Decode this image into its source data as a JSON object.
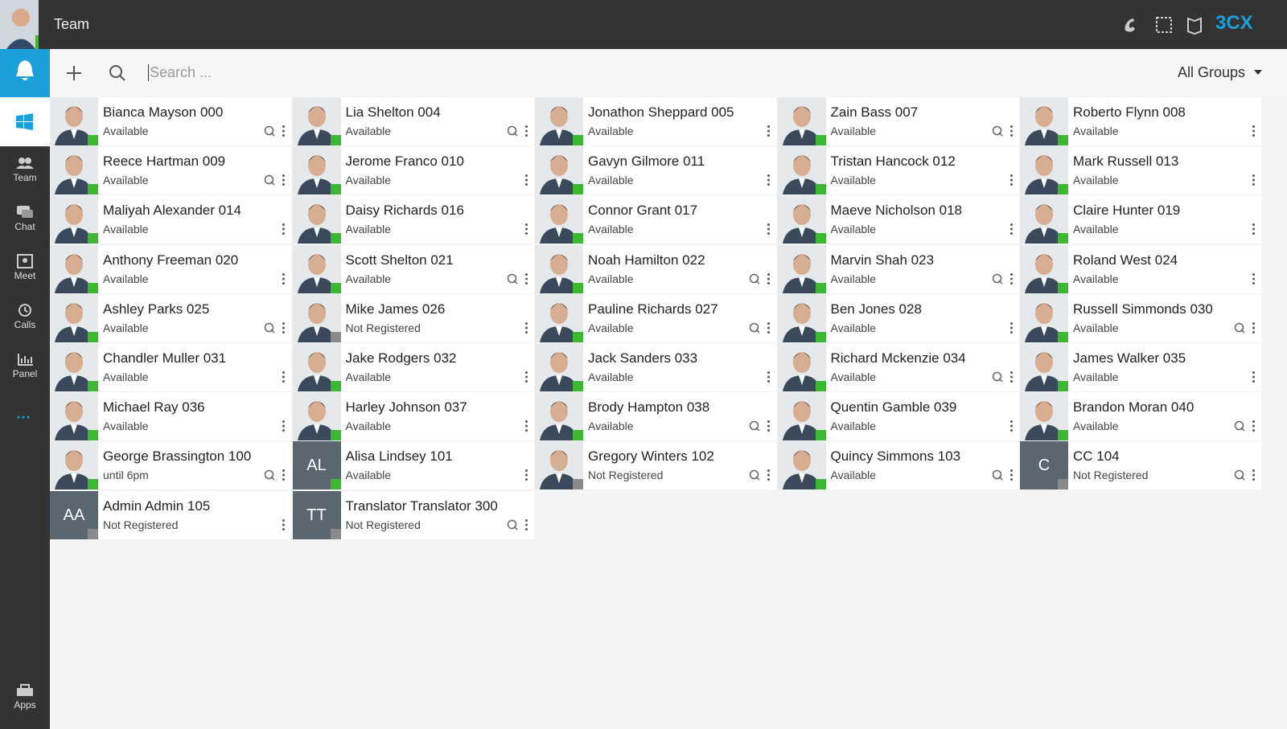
{
  "header": {
    "title": "Team",
    "brand": "3CX"
  },
  "toolbar": {
    "search_placeholder": "Search ...",
    "groups": "All Groups"
  },
  "sidebar": {
    "items": [
      "Team",
      "Chat",
      "Meet",
      "Calls",
      "Panel"
    ],
    "apps": "Apps"
  },
  "contacts": [
    {
      "name": "Bianca Mayson 000",
      "status": "Available",
      "dot": "#3cb731",
      "q": true
    },
    {
      "name": "Lia Shelton 004",
      "status": "Available",
      "dot": "#3cb731",
      "q": true
    },
    {
      "name": "Jonathon Sheppard 005",
      "status": "Available",
      "dot": "#3cb731",
      "q": false
    },
    {
      "name": "Zain Bass 007",
      "status": "Available",
      "dot": "#3cb731",
      "q": true
    },
    {
      "name": "Roberto Flynn 008",
      "status": "Available",
      "dot": "#3cb731",
      "q": false
    },
    {
      "name": "Reece Hartman 009",
      "status": "Available",
      "dot": "#3cb731",
      "q": true
    },
    {
      "name": "Jerome Franco 010",
      "status": "Available",
      "dot": "#3cb731",
      "q": false
    },
    {
      "name": "Gavyn Gilmore 011",
      "status": "Available",
      "dot": "#3cb731",
      "q": false
    },
    {
      "name": "Tristan Hancock 012",
      "status": "Available",
      "dot": "#3cb731",
      "q": false
    },
    {
      "name": "Mark Russell 013",
      "status": "Available",
      "dot": "#3cb731",
      "q": false
    },
    {
      "name": "Maliyah Alexander 014",
      "status": "Available",
      "dot": "#3cb731",
      "q": false
    },
    {
      "name": "Daisy Richards 016",
      "status": "Available",
      "dot": "#3cb731",
      "q": false
    },
    {
      "name": "Connor Grant 017",
      "status": "Available",
      "dot": "#3cb731",
      "q": false
    },
    {
      "name": "Maeve Nicholson 018",
      "status": "Available",
      "dot": "#3cb731",
      "q": false
    },
    {
      "name": "Claire Hunter 019",
      "status": "Available",
      "dot": "#3cb731",
      "q": false
    },
    {
      "name": "Anthony Freeman 020",
      "status": "Available",
      "dot": "#3cb731",
      "q": false
    },
    {
      "name": "Scott Shelton 021",
      "status": "Available",
      "dot": "#3cb731",
      "q": true
    },
    {
      "name": "Noah Hamilton 022",
      "status": "Available",
      "dot": "#3cb731",
      "q": true
    },
    {
      "name": "Marvin Shah 023",
      "status": "Available",
      "dot": "#3cb731",
      "q": true
    },
    {
      "name": "Roland West 024",
      "status": "Available",
      "dot": "#3cb731",
      "q": false
    },
    {
      "name": "Ashley Parks 025",
      "status": "Available",
      "dot": "#3cb731",
      "q": true
    },
    {
      "name": "Mike James 026",
      "status": "Not Registered",
      "dot": "#8a8a8a",
      "q": false
    },
    {
      "name": "Pauline Richards 027",
      "status": "Available",
      "dot": "#3cb731",
      "q": true
    },
    {
      "name": "Ben Jones 028",
      "status": "Available",
      "dot": "#3cb731",
      "q": false
    },
    {
      "name": "Russell Simmonds 030",
      "status": "Available",
      "dot": "#3cb731",
      "q": true
    },
    {
      "name": "Chandler Muller 031",
      "status": "Available",
      "dot": "#3cb731",
      "q": false
    },
    {
      "name": "Jake Rodgers 032",
      "status": "Available",
      "dot": "#3cb731",
      "q": false
    },
    {
      "name": "Jack Sanders 033",
      "status": "Available",
      "dot": "#3cb731",
      "q": false
    },
    {
      "name": "Richard Mckenzie 034",
      "status": "Available",
      "dot": "#3cb731",
      "q": true
    },
    {
      "name": "James Walker 035",
      "status": "Available",
      "dot": "#3cb731",
      "q": false
    },
    {
      "name": "Michael Ray 036",
      "status": "Available",
      "dot": "#3cb731",
      "q": false
    },
    {
      "name": "Harley Johnson 037",
      "status": "Available",
      "dot": "#3cb731",
      "q": false
    },
    {
      "name": "Brody Hampton 038",
      "status": "Available",
      "dot": "#3cb731",
      "q": true
    },
    {
      "name": "Quentin Gamble 039",
      "status": "Available",
      "dot": "#3cb731",
      "q": false
    },
    {
      "name": "Brandon Moran 040",
      "status": "Available",
      "dot": "#3cb731",
      "q": true
    },
    {
      "name": "George Brassington 100",
      "status": "until 6pm",
      "dot": "#3cb731",
      "q": true
    },
    {
      "name": "Alisa Lindsey 101",
      "status": "Available",
      "dot": "#3cb731",
      "q": false,
      "initials": "AL"
    },
    {
      "name": "Gregory Winters 102",
      "status": "Not Registered",
      "dot": "#8a8a8a",
      "q": true
    },
    {
      "name": "Quincy Simmons 103",
      "status": "Available",
      "dot": "#3cb731",
      "q": true
    },
    {
      "name": "CC 104",
      "status": "Not Registered",
      "dot": "#8a8a8a",
      "q": true,
      "initials": "C"
    },
    {
      "name": "Admin Admin 105",
      "status": "Not Registered",
      "dot": "#8a8a8a",
      "q": false,
      "initials": "AA"
    },
    {
      "name": "Translator Translator 300",
      "status": "Not Registered",
      "dot": "#8a8a8a",
      "q": true,
      "initials": "TT"
    }
  ]
}
